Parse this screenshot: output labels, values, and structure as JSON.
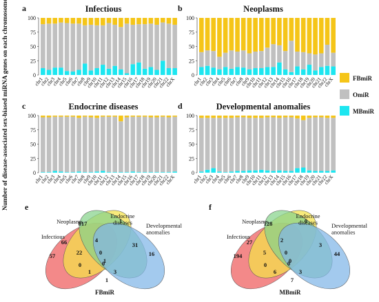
{
  "ylabel": "Number of disease-associated sex-biased miRNA genes on each chromosome (%)",
  "colors": {
    "FBmiR": "#f5c518",
    "OmiR": "#c0c0c0",
    "MBmiR": "#1de6f0"
  },
  "chromosomes": [
    "chr1",
    "chr2",
    "chr3",
    "chr4",
    "chr5",
    "chr6",
    "chr7",
    "chr8",
    "chr9",
    "chr10",
    "chr11",
    "chr12",
    "chr13",
    "chr14",
    "chr15",
    "chr16",
    "chr17",
    "chr18",
    "chr19",
    "chr20",
    "chr21",
    "chr22",
    "chrX"
  ],
  "legend": [
    {
      "key": "FBmiR",
      "label": "FBmiR"
    },
    {
      "key": "OmiR",
      "label": "OmiR"
    },
    {
      "key": "MBmiR",
      "label": "MBmiR"
    }
  ],
  "chart_data": [
    {
      "letter": "a",
      "title": "Infectious",
      "type": "bar",
      "stacked": true,
      "yticks": [
        0,
        25,
        50,
        75,
        100
      ],
      "ylim": [
        0,
        100
      ],
      "series": [
        {
          "name": "MBmiR",
          "values": [
            12,
            9,
            13,
            13,
            7,
            6,
            9,
            20,
            8,
            12,
            18,
            11,
            16,
            10,
            3,
            19,
            22,
            11,
            14,
            9,
            25,
            12,
            12
          ]
        },
        {
          "name": "OmiR",
          "values": [
            77,
            81,
            77,
            79,
            84,
            84,
            81,
            67,
            80,
            75,
            69,
            80,
            72,
            74,
            87,
            69,
            67,
            78,
            76,
            79,
            67,
            78,
            76
          ]
        },
        {
          "name": "FBmiR",
          "values": [
            11,
            10,
            10,
            8,
            9,
            10,
            10,
            13,
            12,
            13,
            13,
            9,
            12,
            16,
            10,
            12,
            11,
            11,
            10,
            12,
            8,
            10,
            12
          ]
        }
      ]
    },
    {
      "letter": "b",
      "title": "Neoplasms",
      "type": "bar",
      "stacked": true,
      "yticks": [
        0,
        25,
        50,
        75,
        100
      ],
      "ylim": [
        0,
        100
      ],
      "series": [
        {
          "name": "MBmiR",
          "values": [
            14,
            16,
            13,
            10,
            14,
            11,
            14,
            13,
            10,
            12,
            12,
            14,
            14,
            22,
            10,
            5,
            15,
            10,
            18,
            8,
            14,
            16,
            15
          ]
        },
        {
          "name": "OmiR",
          "values": [
            26,
            27,
            29,
            22,
            25,
            32,
            27,
            30,
            28,
            29,
            30,
            34,
            40,
            30,
            32,
            55,
            26,
            30,
            20,
            28,
            24,
            37,
            24
          ]
        },
        {
          "name": "FBmiR",
          "values": [
            60,
            57,
            58,
            68,
            61,
            57,
            59,
            57,
            62,
            59,
            58,
            52,
            46,
            48,
            58,
            40,
            59,
            60,
            62,
            64,
            62,
            47,
            61
          ]
        }
      ]
    },
    {
      "letter": "c",
      "title": "Endocrine diseases",
      "type": "bar",
      "stacked": true,
      "yticks": [
        0,
        25,
        50,
        75,
        100
      ],
      "ylim": [
        0,
        100
      ],
      "series": [
        {
          "name": "MBmiR",
          "values": [
            1,
            1,
            3,
            2,
            1,
            1,
            2,
            1,
            1,
            2,
            3,
            1,
            1,
            1,
            1,
            2,
            1,
            1,
            1,
            1,
            1,
            1,
            2
          ]
        },
        {
          "name": "OmiR",
          "values": [
            96,
            96,
            95,
            96,
            97,
            97,
            94,
            97,
            96,
            94,
            95,
            97,
            97,
            89,
            96,
            96,
            97,
            97,
            96,
            96,
            97,
            96,
            96
          ]
        },
        {
          "name": "FBmiR",
          "values": [
            3,
            3,
            2,
            2,
            2,
            2,
            4,
            2,
            3,
            4,
            2,
            2,
            2,
            10,
            3,
            2,
            2,
            2,
            3,
            3,
            2,
            3,
            2
          ]
        }
      ]
    },
    {
      "letter": "d",
      "title": "Developmental anomalies",
      "type": "bar",
      "stacked": true,
      "yticks": [
        0,
        25,
        50,
        75,
        100
      ],
      "ylim": [
        0,
        100
      ],
      "series": [
        {
          "name": "MBmiR",
          "values": [
            2,
            5,
            8,
            2,
            1,
            2,
            3,
            3,
            4,
            4,
            5,
            4,
            3,
            4,
            3,
            3,
            8,
            9,
            4,
            3,
            3,
            3,
            4
          ]
        },
        {
          "name": "OmiR",
          "values": [
            94,
            91,
            88,
            94,
            95,
            94,
            94,
            94,
            92,
            92,
            91,
            93,
            94,
            92,
            94,
            94,
            87,
            83,
            92,
            94,
            94,
            93,
            92
          ]
        },
        {
          "name": "FBmiR",
          "values": [
            4,
            4,
            4,
            4,
            4,
            4,
            3,
            3,
            4,
            4,
            4,
            3,
            3,
            4,
            3,
            3,
            5,
            8,
            4,
            3,
            3,
            4,
            4
          ]
        }
      ]
    }
  ],
  "venns": [
    {
      "letter": "e",
      "sets": [
        "Infectious",
        "Neoplasms",
        "Endocrine diseases",
        "Developmental anomalies"
      ],
      "bottom_label": "FBmiR",
      "counts": [
        "57",
        "817",
        "1",
        "16",
        "66",
        "4",
        "0",
        "0",
        "31",
        "1",
        "22",
        "0",
        "1",
        "3",
        "1"
      ]
    },
    {
      "letter": "f",
      "sets": [
        "Infectious",
        "Neoplasms",
        "Endocrine diseases",
        "Developmental anomalies"
      ],
      "bottom_label": "MBmiR",
      "counts": [
        "194",
        "128",
        "0",
        "44",
        "27",
        "2",
        "0",
        "0",
        "3",
        "7",
        "5",
        "0",
        "6",
        "3",
        "0"
      ]
    }
  ]
}
